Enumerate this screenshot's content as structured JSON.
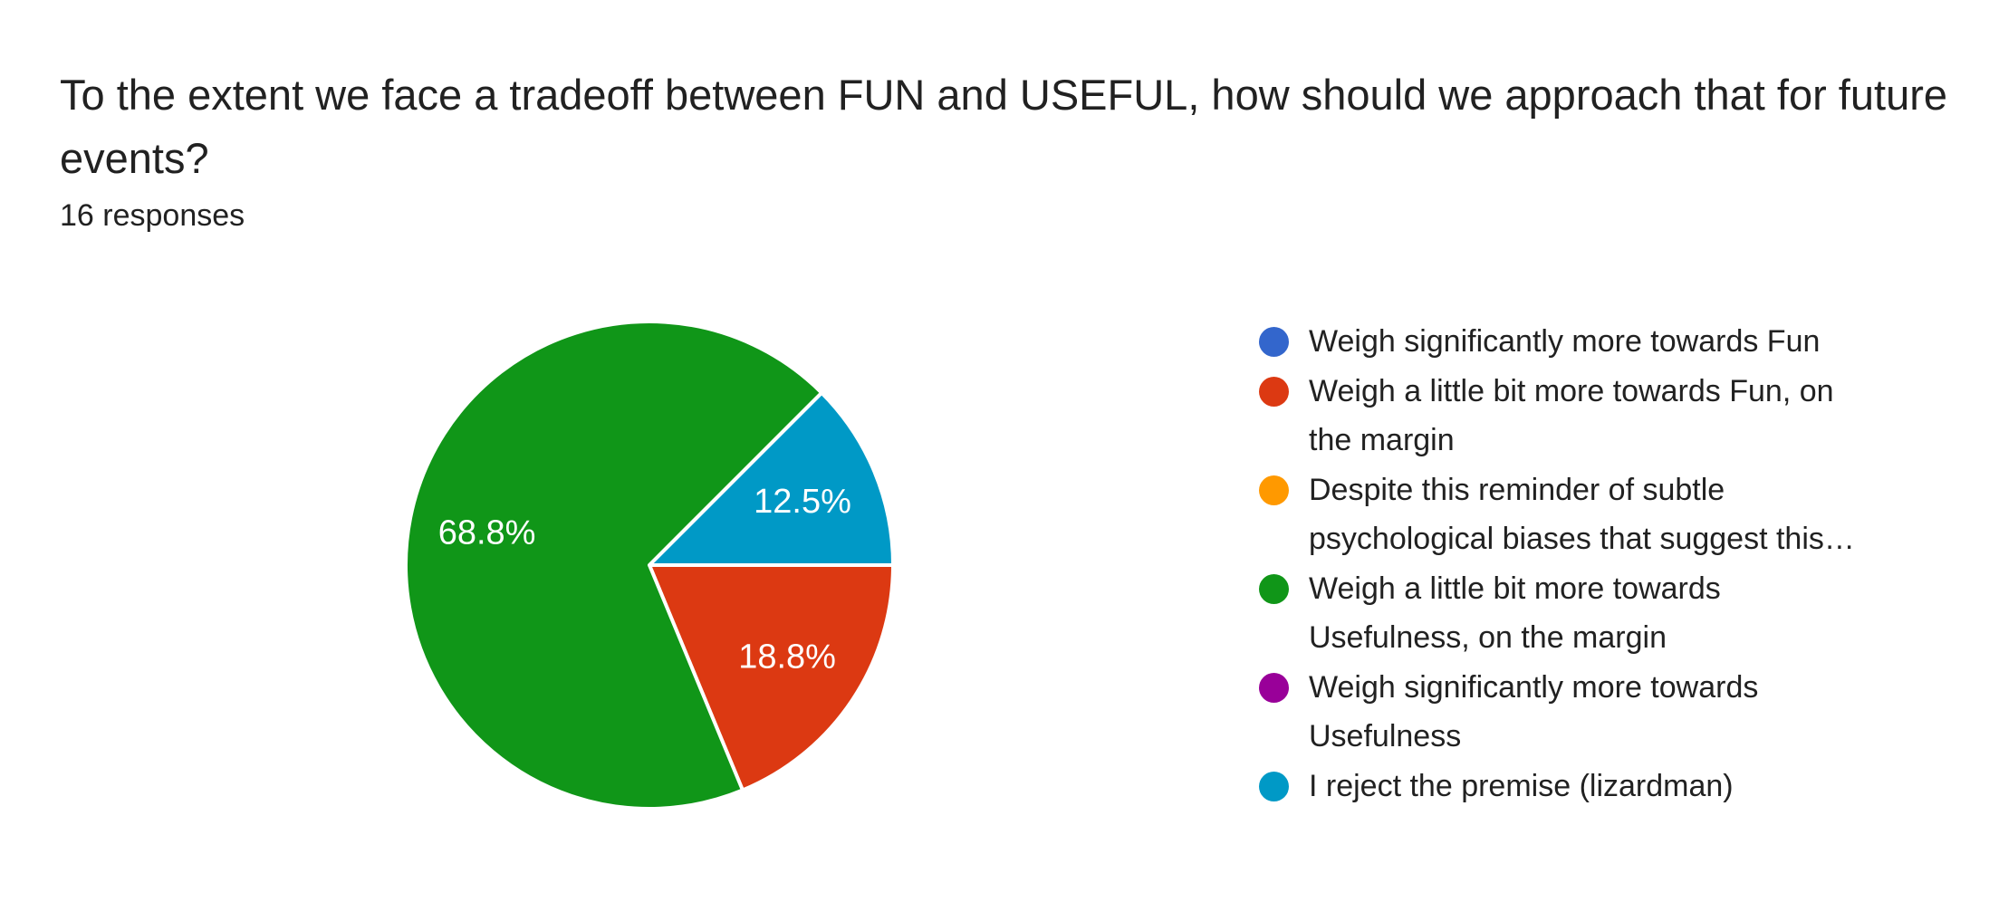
{
  "header": {
    "title": "To the extent we face a tradeoff between FUN and USEFUL, how should we approach that for future events?",
    "responses_count": "16 responses"
  },
  "chart_data": {
    "type": "pie",
    "title": "To the extent we face a tradeoff between FUN and USEFUL, how should we approach that for future events?",
    "subtitle": "16 responses",
    "total_responses": 16,
    "legend_position": "right",
    "start_angle_deg": 90,
    "direction": "clockwise",
    "slice_label_color": "#ffffff",
    "slice_separator_color": "#ffffff",
    "slices": [
      {
        "label": "Weigh significantly more towards Fun",
        "legend_lines": [
          "Weigh significantly more towards Fun"
        ],
        "color": "#3366cc",
        "count": 0,
        "percent": 0,
        "percent_label": ""
      },
      {
        "label": "Weigh a little bit more towards Fun, on the margin",
        "legend_lines": [
          "Weigh a little bit more towards Fun, on",
          "the margin"
        ],
        "color": "#dc3912",
        "count": 3,
        "percent": 18.75,
        "percent_label": "18.8%"
      },
      {
        "label": "Despite this reminder of subtle psychological biases that suggest this…",
        "legend_lines": [
          "Despite this reminder of subtle",
          "psychological biases that suggest this…"
        ],
        "color": "#ff9900",
        "count": 0,
        "percent": 0,
        "percent_label": ""
      },
      {
        "label": "Weigh a little bit more towards Usefulness, on the margin",
        "legend_lines": [
          "Weigh a little bit more towards",
          "Usefulness, on the margin"
        ],
        "color": "#109618",
        "count": 11,
        "percent": 68.75,
        "percent_label": "68.8%"
      },
      {
        "label": "Weigh significantly more towards Usefulness",
        "legend_lines": [
          "Weigh significantly more towards",
          "Usefulness"
        ],
        "color": "#990099",
        "count": 0,
        "percent": 0,
        "percent_label": ""
      },
      {
        "label": "I reject the premise (lizardman)",
        "legend_lines": [
          "I reject the premise (lizardman)"
        ],
        "color": "#0099c6",
        "count": 2,
        "percent": 12.5,
        "percent_label": "12.5%"
      }
    ]
  }
}
